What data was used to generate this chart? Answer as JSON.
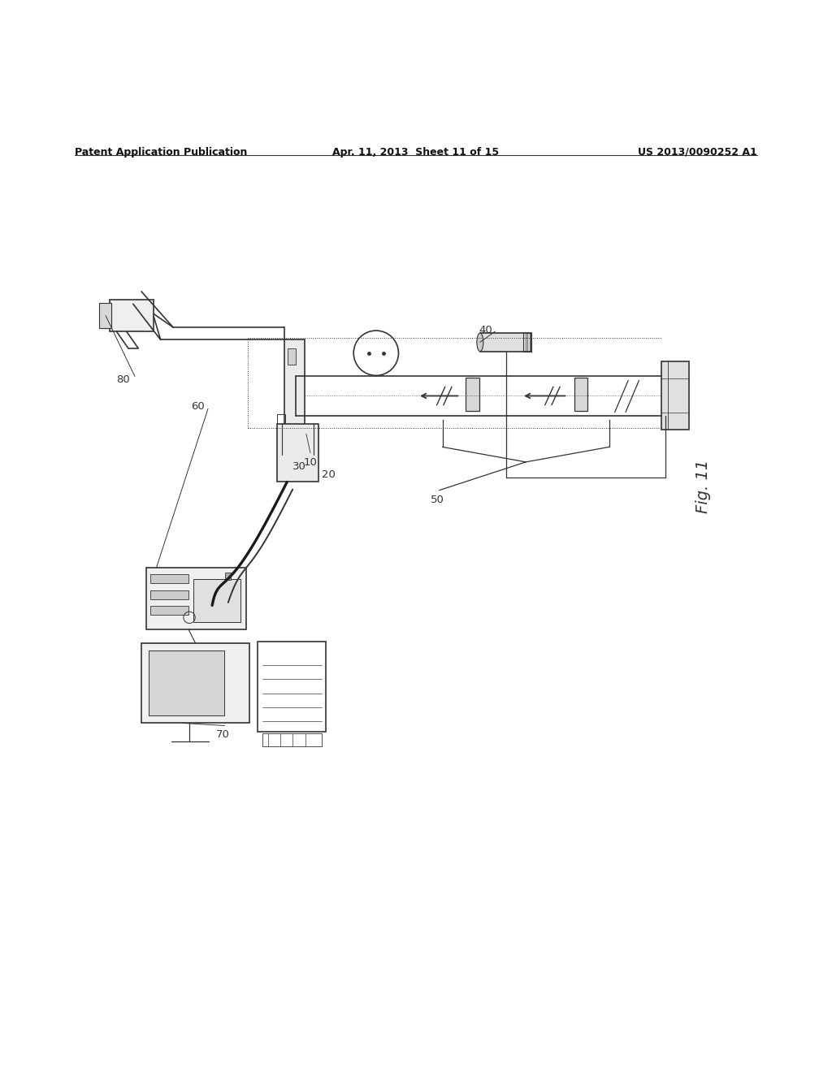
{
  "header_left": "Patent Application Publication",
  "header_center": "Apr. 11, 2013  Sheet 11 of 15",
  "header_right": "US 2013/0090252 A1",
  "fig_label": "Fig. 11",
  "background_color": "#ffffff",
  "line_color": "#333333",
  "label_fontsize": 9.5,
  "header_fontsize": 9,
  "fig_label_fontsize": 14
}
